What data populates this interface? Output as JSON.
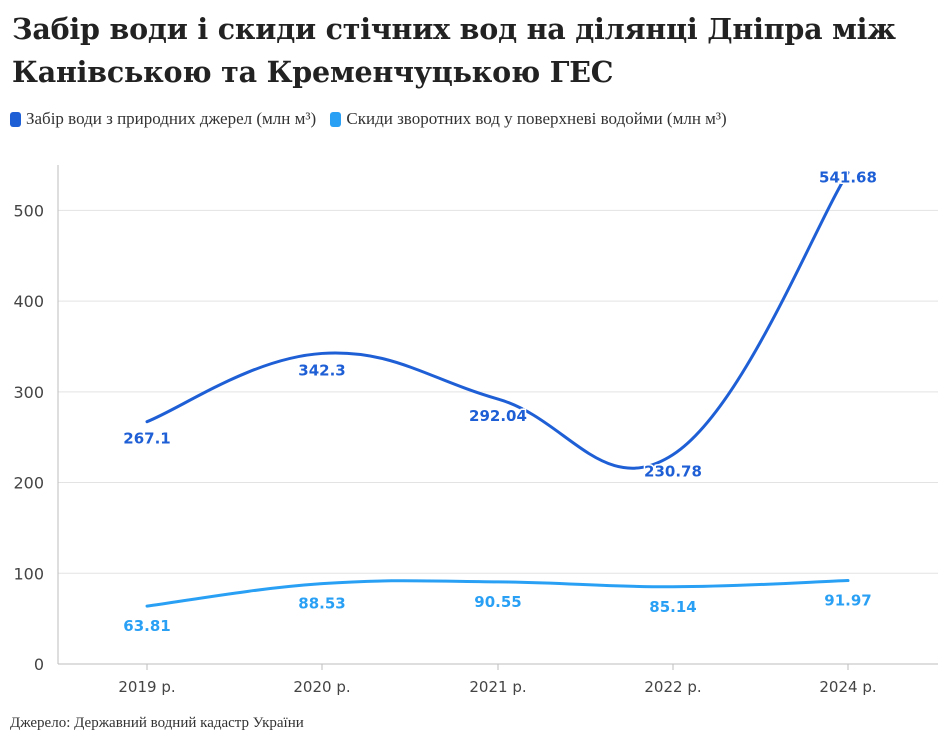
{
  "title": "Забір води і скиди стічних вод на ділянці Дніпра між Канівською та Кременчуцькою ГЕС",
  "legend": [
    {
      "label": "Забір води з природних джерел (млн м³)",
      "color": "#1f5fd6"
    },
    {
      "label": "Скиди зворотних вод у поверхневі водойми (млн м³)",
      "color": "#2aa0f5"
    }
  ],
  "source": "Джерело: Державний водний кадастр України",
  "chart_data": {
    "type": "line",
    "categories": [
      "2019 р.",
      "2020 р.",
      "2021 р.",
      "2022 р.",
      "2024 р."
    ],
    "series": [
      {
        "name": "Забір води з природних джерел (млн м³)",
        "values": [
          267.1,
          342.3,
          292.04,
          230.78,
          541.68
        ],
        "color": "#1f5fd6"
      },
      {
        "name": "Скиди зворотних вод у поверхневі водойми (млн м³)",
        "values": [
          63.81,
          88.53,
          90.55,
          85.14,
          91.97
        ],
        "color": "#2aa0f5"
      }
    ],
    "ylim": [
      0,
      550
    ],
    "yticks": [
      0,
      100,
      200,
      300,
      400,
      500
    ],
    "grid": true,
    "legend_position": "top-left"
  }
}
